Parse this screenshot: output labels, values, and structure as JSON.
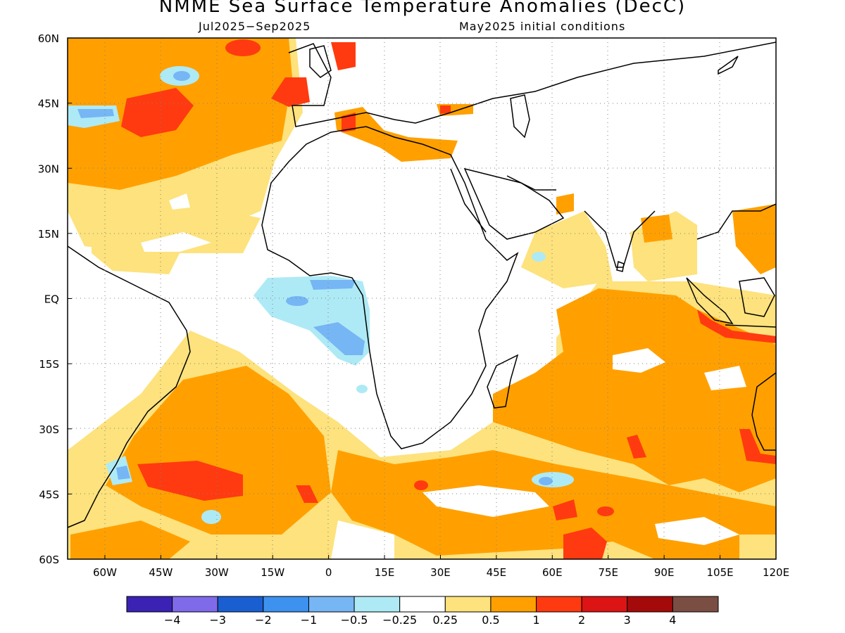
{
  "title": "NMME Sea Surface Temperature Anomalies (DecC)",
  "subtitle_left": "Jul2025−Sep2025",
  "subtitle_right": "May2025 initial conditions",
  "map": {
    "lon_range": [
      -70,
      120
    ],
    "lat_range": [
      -60,
      60
    ],
    "lat_ticks": [
      "60N",
      "45N",
      "30N",
      "15N",
      "EQ",
      "15S",
      "30S",
      "45S",
      "60S"
    ],
    "lon_ticks": [
      "60W",
      "45W",
      "30W",
      "15W",
      "0",
      "15E",
      "30E",
      "45E",
      "60E",
      "75E",
      "90E",
      "105E",
      "120E"
    ]
  },
  "colorbar": {
    "colors": [
      "#3b22b4",
      "#7f6aea",
      "#1a5fd2",
      "#3d92f0",
      "#76b6f5",
      "#aeeaf5",
      "#ffffff",
      "#fde27d",
      "#ffa000",
      "#ff3a10",
      "#dc1414",
      "#a50a0a",
      "#7a4e42"
    ],
    "labels": [
      "−4",
      "−3",
      "−2",
      "−1",
      "−0.5",
      "−0.25",
      "0.25",
      "0.5",
      "1",
      "2",
      "3",
      "4"
    ]
  }
}
